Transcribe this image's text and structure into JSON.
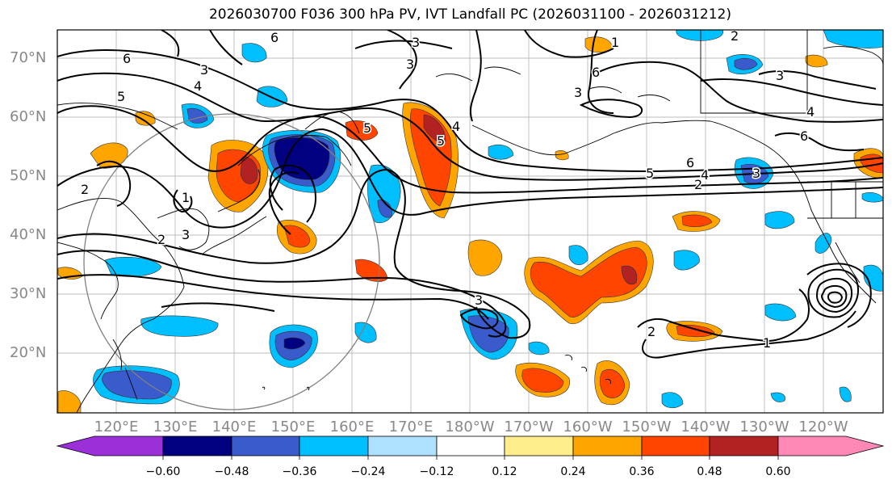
{
  "title": "2026030700 F036 300 hPa PV, IVT Landfall PC (2026031100 - 2026031212)",
  "map": {
    "lat_labels": [
      "70°N",
      "60°N",
      "50°N",
      "40°N",
      "30°N",
      "20°N"
    ],
    "lon_labels": [
      "120°E",
      "130°E",
      "140°E",
      "150°E",
      "160°E",
      "170°E",
      "180°W",
      "170°W",
      "160°W",
      "150°W",
      "140°W",
      "130°W",
      "120°W"
    ],
    "extent": {
      "lon_min": 110,
      "lon_max": 250,
      "lat_min": 10,
      "lat_max": 75
    },
    "contour_labels": [
      "6",
      "3",
      "2",
      "1",
      "5",
      "4",
      "6",
      "3",
      "2",
      "5",
      "3",
      "3",
      "6",
      "4",
      "3",
      "5",
      "3",
      "4",
      "6",
      "5",
      "6",
      "4",
      "2",
      "3",
      "2",
      "1",
      "1",
      "2",
      "3"
    ]
  },
  "colorbar": {
    "colors": [
      "#9b30d9",
      "#000080",
      "#3a5bcc",
      "#00bfff",
      "#aee1ff",
      "#ffffff",
      "#ffec8b",
      "#ffa500",
      "#ff4500",
      "#b22222",
      "#ff88b5"
    ],
    "ticks": [
      "−0.60",
      "−0.48",
      "−0.36",
      "−0.24",
      "−0.12",
      "0.12",
      "0.24",
      "0.36",
      "0.48",
      "0.60"
    ]
  }
}
